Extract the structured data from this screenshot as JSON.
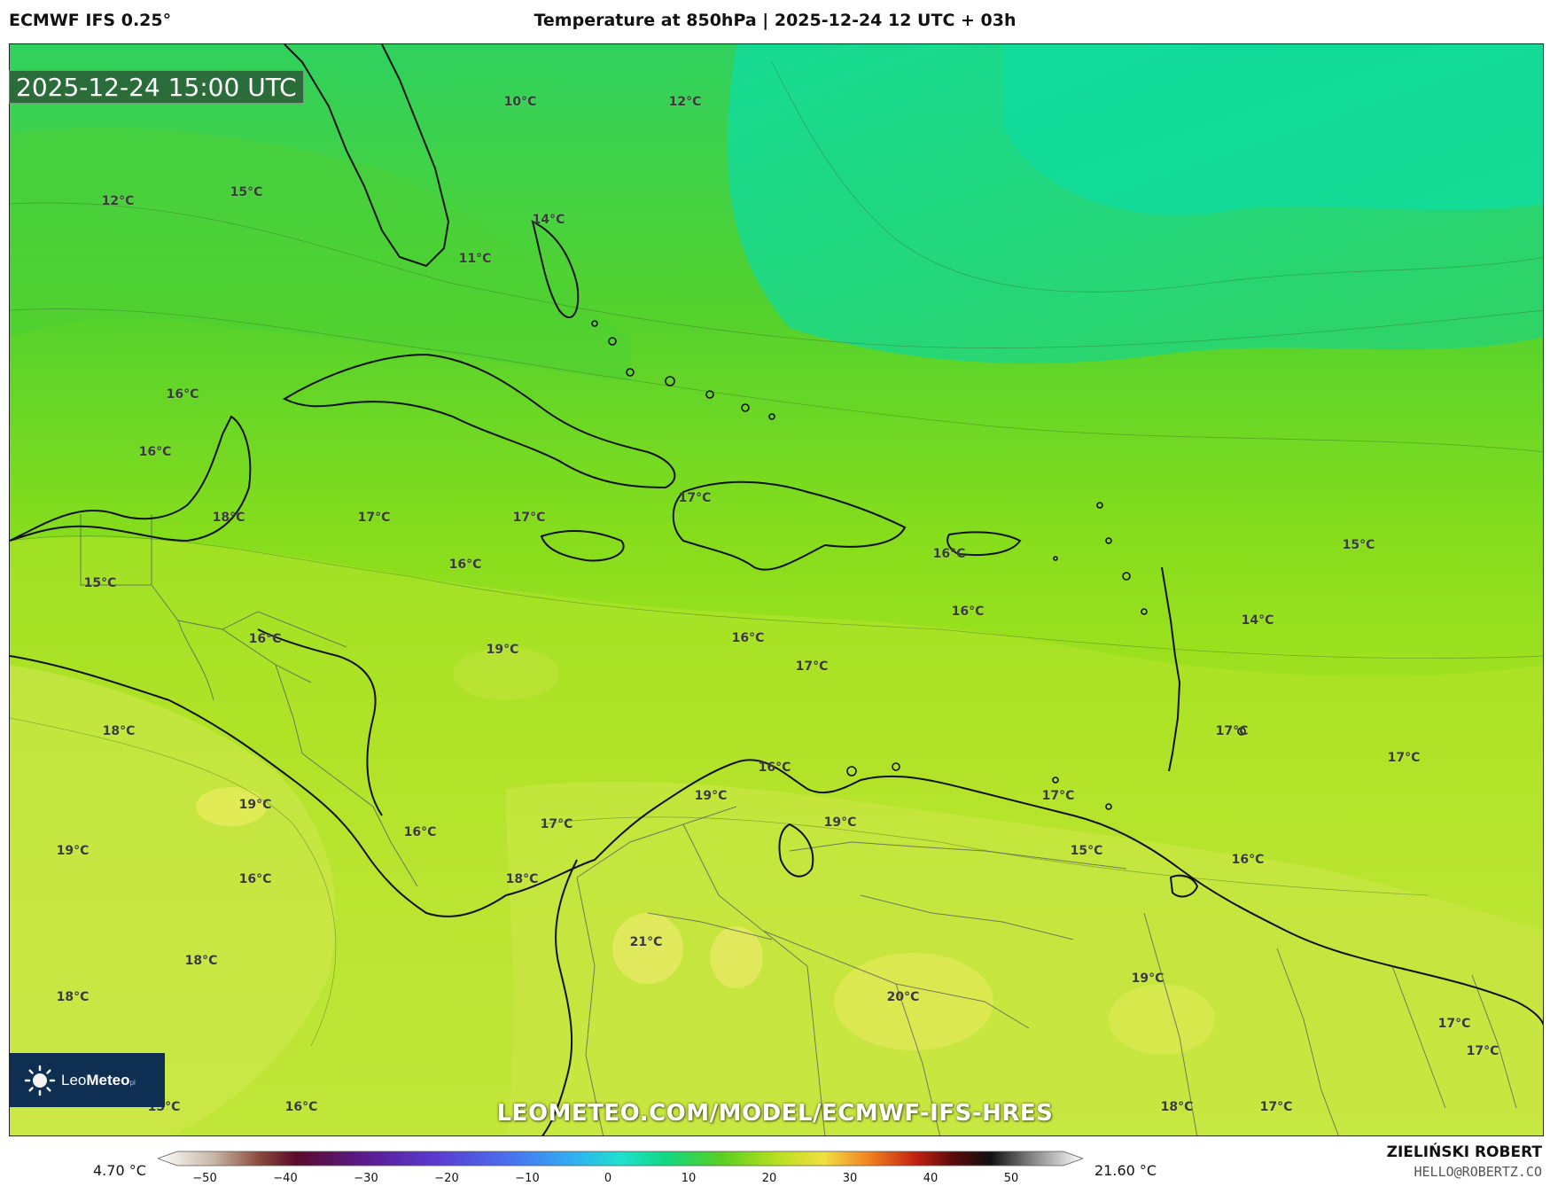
{
  "header": {
    "model": "ECMWF IFS 0.25°",
    "title": "Temperature at 850hPa | 2025-12-24 12 UTC + 03h"
  },
  "map": {
    "valid_time": "2025-12-24 15:00 UTC",
    "watermark": "LEOMETEO.COM/MODEL/ECMWF-IFS-HRES",
    "logo": {
      "name": "LeoMeteo",
      "part1": "Leo",
      "part2": "Meteo",
      "suffix": "pl"
    },
    "labels": [
      "10°C",
      "12°C",
      "12°C",
      "15°C",
      "14°C",
      "11°C",
      "16°C",
      "16°C",
      "18°C",
      "17°C",
      "17°C",
      "17°C",
      "16°C",
      "16°C",
      "15°C",
      "16°C",
      "19°C",
      "16°C",
      "17°C",
      "16°C",
      "15°C",
      "14°C",
      "18°C",
      "17°C",
      "17°C",
      "19°C",
      "16°C",
      "19°C",
      "17°C",
      "19°C",
      "16°C",
      "17°C",
      "15°C",
      "16°C",
      "19°C",
      "18°C",
      "16°C",
      "21°C",
      "18°C",
      "20°C",
      "19°C",
      "18°C",
      "17°C",
      "17°C",
      "15°C",
      "16°C",
      "18°C",
      "17°C"
    ],
    "colors": {
      "ocean_north": "#10d88e",
      "ocean_mid": "#5cd62a",
      "caribbean": "#9ee21a",
      "south_land": "#c8e844",
      "warm_land": "#e8ea5c",
      "coastline": "#111111",
      "border": "#555566"
    }
  },
  "legend": {
    "unit": "°C",
    "min_value": "4.70 °C",
    "max_value": "21.60 °C",
    "ticks": [
      "−50",
      "−40",
      "−30",
      "−20",
      "−10",
      "0",
      "10",
      "20",
      "30",
      "40",
      "50"
    ]
  },
  "credits": {
    "author": "ZIELIŃSKI ROBERT",
    "email": "HELLO@ROBERTZ.CO"
  }
}
